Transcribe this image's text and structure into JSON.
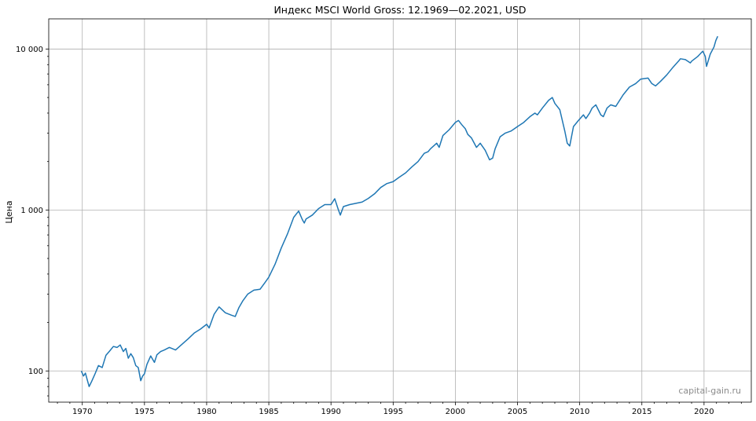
{
  "chart_data": {
    "type": "line",
    "title": "Индекс MSCI World Gross: 12.1969—02.2021, USD",
    "xlabel": "",
    "ylabel": "Цена",
    "xlim": [
      1967.3,
      2023.8
    ],
    "ylim": [
      64,
      15400
    ],
    "yscale": "log",
    "grid": true,
    "x_ticks": [
      1970,
      1975,
      1980,
      1985,
      1990,
      1995,
      2000,
      2005,
      2010,
      2015,
      2020
    ],
    "x_tick_labels": [
      "1970",
      "1975",
      "1980",
      "1985",
      "1990",
      "1995",
      "2000",
      "2005",
      "2010",
      "2015",
      "2020"
    ],
    "y_ticks": [
      100,
      1000,
      10000
    ],
    "y_tick_labels": [
      "100",
      "1 000",
      "10 000"
    ],
    "watermark": "capital-gain.ru",
    "series": [
      {
        "color": "#1f77b4",
        "x": [
          1969.92,
          1970.1,
          1970.25,
          1970.4,
          1970.55,
          1970.75,
          1971.0,
          1971.3,
          1971.6,
          1971.9,
          1972.2,
          1972.5,
          1972.8,
          1973.05,
          1973.3,
          1973.5,
          1973.7,
          1973.9,
          1974.1,
          1974.3,
          1974.5,
          1974.7,
          1974.85,
          1975.0,
          1975.2,
          1975.5,
          1975.8,
          1976.0,
          1976.3,
          1976.6,
          1977.0,
          1977.5,
          1978.0,
          1978.5,
          1979.0,
          1979.5,
          1980.0,
          1980.2,
          1980.6,
          1981.0,
          1981.5,
          1982.0,
          1982.3,
          1982.6,
          1982.9,
          1983.3,
          1983.8,
          1984.3,
          1984.7,
          1985.0,
          1985.5,
          1986.0,
          1986.5,
          1987.0,
          1987.4,
          1987.7,
          1987.85,
          1988.0,
          1988.5,
          1989.0,
          1989.5,
          1990.0,
          1990.3,
          1990.6,
          1990.75,
          1991.0,
          1991.5,
          1992.0,
          1992.5,
          1993.0,
          1993.5,
          1994.0,
          1994.5,
          1995.0,
          1995.5,
          1996.0,
          1996.5,
          1997.0,
          1997.5,
          1997.8,
          1998.0,
          1998.5,
          1998.7,
          1999.0,
          1999.5,
          2000.0,
          2000.25,
          2000.5,
          2000.8,
          2001.0,
          2001.3,
          2001.7,
          2002.0,
          2002.4,
          2002.75,
          2003.0,
          2003.2,
          2003.6,
          2004.0,
          2004.5,
          2005.0,
          2005.5,
          2006.0,
          2006.4,
          2006.6,
          2007.0,
          2007.5,
          2007.8,
          2008.0,
          2008.4,
          2008.8,
          2009.0,
          2009.2,
          2009.5,
          2009.9,
          2010.3,
          2010.5,
          2010.8,
          2011.0,
          2011.3,
          2011.7,
          2011.9,
          2012.2,
          2012.5,
          2012.9,
          2013.5,
          2014.0,
          2014.5,
          2014.9,
          2015.5,
          2015.8,
          2016.1,
          2016.5,
          2017.0,
          2017.5,
          2018.0,
          2018.1,
          2018.5,
          2018.9,
          2019.0,
          2019.5,
          2019.9,
          2020.1,
          2020.2,
          2020.5,
          2020.8,
          2020.95,
          2021.1
        ],
        "y": [
          100,
          93,
          97,
          88,
          80,
          86,
          95,
          108,
          105,
          125,
          133,
          142,
          140,
          145,
          132,
          138,
          120,
          128,
          121,
          108,
          105,
          87,
          93,
          96,
          110,
          124,
          113,
          126,
          132,
          135,
          140,
          135,
          146,
          158,
          172,
          182,
          195,
          185,
          225,
          250,
          230,
          222,
          218,
          248,
          272,
          300,
          318,
          322,
          355,
          383,
          460,
          580,
          710,
          900,
          985,
          870,
          830,
          880,
          930,
          1020,
          1080,
          1080,
          1175,
          1000,
          930,
          1050,
          1080,
          1100,
          1120,
          1180,
          1260,
          1380,
          1460,
          1500,
          1600,
          1700,
          1850,
          2000,
          2250,
          2300,
          2400,
          2600,
          2450,
          2900,
          3150,
          3500,
          3600,
          3400,
          3200,
          2950,
          2800,
          2450,
          2600,
          2350,
          2050,
          2100,
          2400,
          2850,
          3000,
          3100,
          3300,
          3500,
          3800,
          4000,
          3900,
          4300,
          4800,
          5000,
          4600,
          4200,
          3100,
          2600,
          2500,
          3300,
          3600,
          3900,
          3700,
          4000,
          4300,
          4500,
          3900,
          3800,
          4300,
          4500,
          4400,
          5200,
          5800,
          6100,
          6500,
          6600,
          6100,
          5900,
          6300,
          6900,
          7700,
          8500,
          8700,
          8600,
          8200,
          8400,
          9000,
          9700,
          9000,
          7800,
          9300,
          10300,
          11300,
          12000
        ]
      }
    ]
  }
}
